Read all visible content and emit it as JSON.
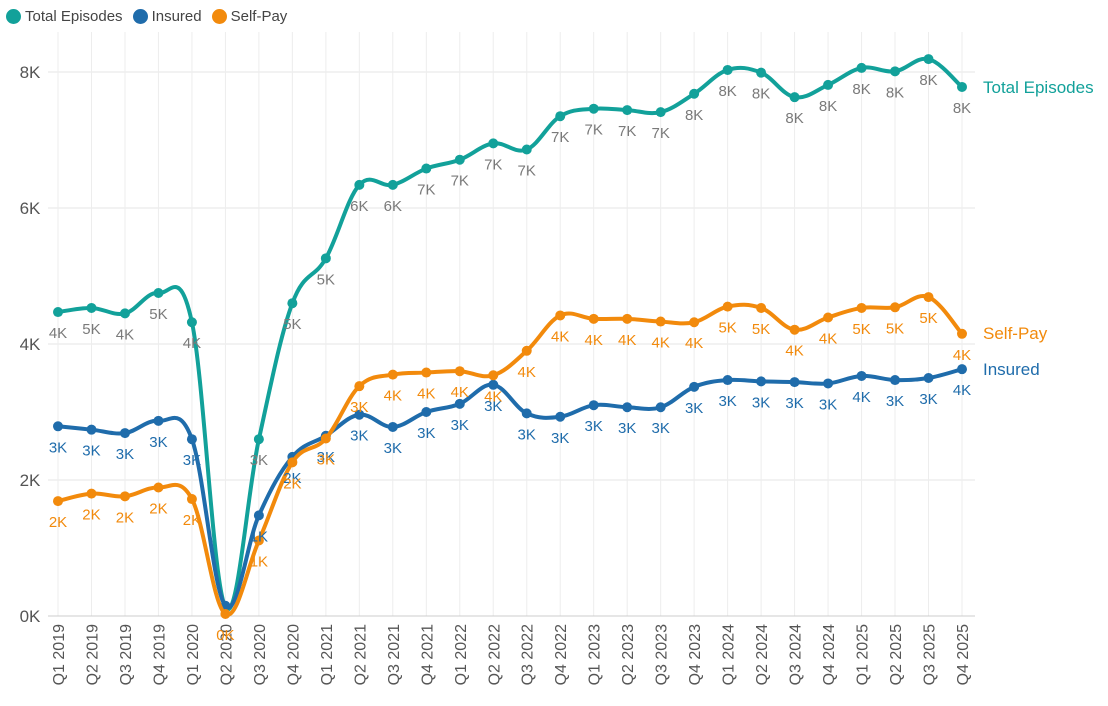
{
  "chart_data": {
    "type": "line",
    "categories": [
      "Q1 2019",
      "Q2 2019",
      "Q3 2019",
      "Q4 2019",
      "Q1 2020",
      "Q2 2020",
      "Q3 2020",
      "Q4 2020",
      "Q1 2021",
      "Q2 2021",
      "Q3 2021",
      "Q4 2021",
      "Q1 2022",
      "Q2 2022",
      "Q3 2022",
      "Q4 2022",
      "Q1 2023",
      "Q2 2023",
      "Q3 2023",
      "Q4 2023",
      "Q1 2024",
      "Q2 2024",
      "Q3 2024",
      "Q4 2024",
      "Q1 2025",
      "Q2 2025",
      "Q3 2025",
      "Q4 2025"
    ],
    "ylim": [
      0,
      8000
    ],
    "yticks": [
      0,
      2000,
      4000,
      6000,
      8000
    ],
    "ytick_labels": [
      "0K",
      "2K",
      "4K",
      "6K",
      "8K"
    ],
    "grid": true,
    "legend_position": "top-left",
    "series": [
      {
        "name": "Total Episodes",
        "color": "#12A19A",
        "values": [
          4470,
          4530,
          4450,
          4750,
          4320,
          130,
          2600,
          4600,
          5260,
          6340,
          6340,
          6580,
          6710,
          6950,
          6860,
          7350,
          7460,
          7440,
          7410,
          7680,
          8030,
          7990,
          7630,
          7810,
          8060,
          8010,
          8190,
          7780
        ],
        "labels": [
          "4K",
          "5K",
          "4K",
          "5K",
          "4K",
          "",
          "3K",
          "5K",
          "5K",
          "6K",
          "6K",
          "7K",
          "7K",
          "7K",
          "7K",
          "7K",
          "7K",
          "7K",
          "7K",
          "8K",
          "8K",
          "8K",
          "8K",
          "8K",
          "8K",
          "8K",
          "8K",
          "8K"
        ]
      },
      {
        "name": "Insured",
        "color": "#1F6CAB",
        "values": [
          2790,
          2740,
          2690,
          2870,
          2600,
          150,
          1480,
          2340,
          2650,
          2960,
          2780,
          3000,
          3120,
          3400,
          2980,
          2930,
          3100,
          3070,
          3070,
          3370,
          3470,
          3450,
          3440,
          3420,
          3530,
          3470,
          3500,
          3630
        ],
        "labels": [
          "3K",
          "3K",
          "3K",
          "3K",
          "3K",
          "",
          "1K",
          "2K",
          "3K",
          "3K",
          "3K",
          "3K",
          "3K",
          "3K",
          "3K",
          "3K",
          "3K",
          "3K",
          "3K",
          "3K",
          "3K",
          "3K",
          "3K",
          "3K",
          "4K",
          "3K",
          "3K",
          "4K"
        ]
      },
      {
        "name": "Self-Pay",
        "color": "#F28A0C",
        "values": [
          1690,
          1800,
          1760,
          1890,
          1720,
          30,
          1110,
          2260,
          2610,
          3380,
          3550,
          3580,
          3600,
          3540,
          3900,
          4420,
          4370,
          4370,
          4330,
          4320,
          4550,
          4530,
          4210,
          4390,
          4530,
          4540,
          4690,
          4150
        ],
        "labels": [
          "2K",
          "2K",
          "2K",
          "2K",
          "2K",
          "0K",
          "1K",
          "2K",
          "3K",
          "3K",
          "4K",
          "4K",
          "4K",
          "4K",
          "4K",
          "4K",
          "4K",
          "4K",
          "4K",
          "4K",
          "5K",
          "5K",
          "4K",
          "4K",
          "5K",
          "5K",
          "5K",
          "4K"
        ]
      }
    ]
  }
}
